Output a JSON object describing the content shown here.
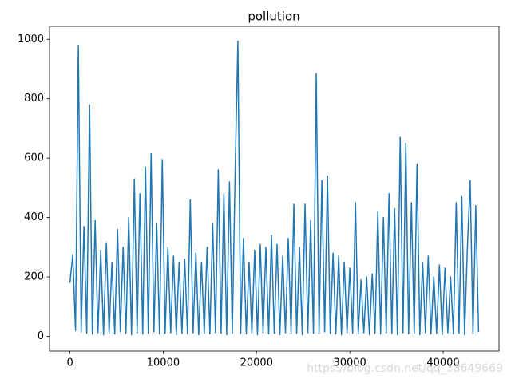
{
  "chart_data": {
    "type": "line",
    "title": "pollution",
    "color": "#1f77b4",
    "x": [
      0,
      300,
      600,
      900,
      1200,
      1500,
      1800,
      2100,
      2400,
      2700,
      3000,
      3300,
      3600,
      3900,
      4200,
      4500,
      4800,
      5100,
      5400,
      5700,
      6000,
      6300,
      6600,
      6900,
      7200,
      7500,
      7800,
      8100,
      8400,
      8700,
      9000,
      9300,
      9600,
      9900,
      10200,
      10500,
      10800,
      11100,
      11400,
      11700,
      12000,
      12300,
      12600,
      12900,
      13200,
      13500,
      13800,
      14100,
      14400,
      14700,
      15000,
      15300,
      15600,
      15900,
      16200,
      16500,
      16800,
      17100,
      17400,
      17700,
      18000,
      18300,
      18600,
      18900,
      19200,
      19500,
      19800,
      20100,
      20400,
      20700,
      21000,
      21300,
      21600,
      21900,
      22200,
      22500,
      22800,
      23100,
      23400,
      23700,
      24000,
      24300,
      24600,
      24900,
      25200,
      25500,
      25800,
      26100,
      26400,
      26700,
      27000,
      27300,
      27600,
      27900,
      28200,
      28500,
      28800,
      29100,
      29400,
      29700,
      30000,
      30300,
      30600,
      30900,
      31200,
      31500,
      31800,
      32100,
      32400,
      32700,
      33000,
      33300,
      33600,
      33900,
      34200,
      34500,
      34800,
      35100,
      35400,
      35700,
      36000,
      36300,
      36600,
      36900,
      37200,
      37500,
      37800,
      38100,
      38400,
      38700,
      39000,
      39300,
      39600,
      39900,
      40200,
      40500,
      40800,
      41100,
      41400,
      41700,
      42000,
      42300,
      42600,
      42900,
      43200,
      43500,
      43800
    ],
    "values": [
      180,
      275,
      20,
      980,
      15,
      370,
      10,
      780,
      8,
      390,
      12,
      290,
      5,
      315,
      10,
      250,
      8,
      360,
      15,
      300,
      10,
      400,
      5,
      530,
      12,
      480,
      8,
      570,
      10,
      615,
      15,
      380,
      8,
      595,
      10,
      300,
      12,
      270,
      5,
      250,
      10,
      260,
      8,
      460,
      12,
      280,
      5,
      250,
      10,
      300,
      8,
      380,
      12,
      560,
      10,
      480,
      5,
      520,
      10,
      540,
      994,
      10,
      330,
      8,
      250,
      10,
      290,
      5,
      310,
      12,
      300,
      8,
      340,
      10,
      310,
      5,
      270,
      12,
      330,
      8,
      445,
      10,
      300,
      5,
      445,
      12,
      390,
      10,
      885,
      8,
      525,
      15,
      540,
      10,
      280,
      8,
      270,
      5,
      250,
      12,
      230,
      10,
      450,
      8,
      190,
      12,
      200,
      5,
      210,
      10,
      420,
      8,
      400,
      12,
      480,
      10,
      430,
      5,
      670,
      12,
      650,
      8,
      450,
      10,
      580,
      5,
      250,
      12,
      270,
      8,
      200,
      10,
      240,
      5,
      230,
      12,
      200,
      8,
      450,
      10,
      470,
      5,
      300,
      525,
      8,
      440,
      15
    ],
    "xlim": [
      -2190,
      45990
    ],
    "ylim": [
      -49.7,
      1043.7
    ],
    "xticks": [
      0,
      10000,
      20000,
      30000,
      40000
    ],
    "yticks": [
      0,
      200,
      400,
      600,
      800,
      1000
    ],
    "watermark": "https://blog.csdn.net/qq_38649669"
  }
}
